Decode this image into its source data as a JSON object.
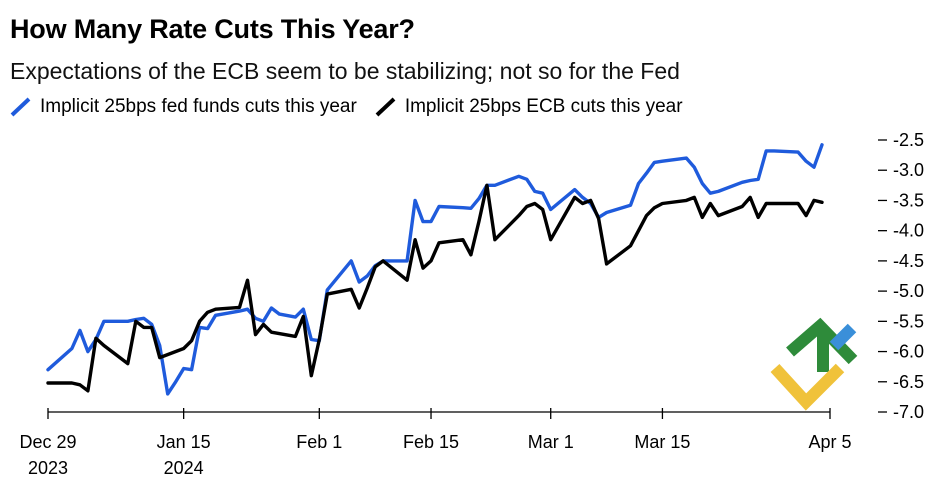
{
  "chart_data": {
    "type": "line",
    "title": "How Many Rate Cuts This Year?",
    "subtitle": "Expectations of the ECB seem to be stabilizing; not so for the Fed",
    "xlabel": "",
    "ylabel": "",
    "ylim": [
      -7.0,
      -2.5
    ],
    "yticks": [
      -2.5,
      -3.0,
      -3.5,
      -4.0,
      -4.5,
      -5.0,
      -5.5,
      -6.0,
      -6.5,
      -7.0
    ],
    "ytick_labels": [
      "-2.5",
      "-3.0",
      "-3.5",
      "-4.0",
      "-4.5",
      "-5.0",
      "-5.5",
      "-6.0",
      "-6.5",
      "-7.0"
    ],
    "x_range": [
      "2023-12-29",
      "2024-04-05"
    ],
    "x_ticks": [
      {
        "date": "2023-12-29",
        "line1": "Dec 29",
        "line2": "2023"
      },
      {
        "date": "2024-01-15",
        "line1": "Jan 15",
        "line2": "2024"
      },
      {
        "date": "2024-02-01",
        "line1": "Feb 1",
        "line2": ""
      },
      {
        "date": "2024-02-15",
        "line1": "Feb 15",
        "line2": ""
      },
      {
        "date": "2024-03-01",
        "line1": "Mar 1",
        "line2": ""
      },
      {
        "date": "2024-03-15",
        "line1": "Mar 15",
        "line2": ""
      },
      {
        "date": "2024-04-05",
        "line1": "Apr 5",
        "line2": ""
      }
    ],
    "grid": false,
    "legend_position": "top-left",
    "series": [
      {
        "name": "Implicit 25bps fed funds cuts this year",
        "color": "#1f5bdc",
        "points": [
          [
            "2023-12-29",
            -6.3
          ],
          [
            "2024-01-01",
            -5.95
          ],
          [
            "2024-01-02",
            -5.65
          ],
          [
            "2024-01-03",
            -6.0
          ],
          [
            "2024-01-04",
            -5.8
          ],
          [
            "2024-01-05",
            -5.5
          ],
          [
            "2024-01-08",
            -5.5
          ],
          [
            "2024-01-09",
            -5.47
          ],
          [
            "2024-01-10",
            -5.45
          ],
          [
            "2024-01-11",
            -5.55
          ],
          [
            "2024-01-12",
            -5.9
          ],
          [
            "2024-01-13",
            -6.7
          ],
          [
            "2024-01-14",
            -6.5
          ],
          [
            "2024-01-15",
            -6.28
          ],
          [
            "2024-01-16",
            -6.3
          ],
          [
            "2024-01-17",
            -5.6
          ],
          [
            "2024-01-18",
            -5.62
          ],
          [
            "2024-01-19",
            -5.4
          ],
          [
            "2024-01-22",
            -5.33
          ],
          [
            "2024-01-23",
            -5.3
          ],
          [
            "2024-01-24",
            -5.45
          ],
          [
            "2024-01-25",
            -5.5
          ],
          [
            "2024-01-26",
            -5.28
          ],
          [
            "2024-01-27",
            -5.38
          ],
          [
            "2024-01-29",
            -5.43
          ],
          [
            "2024-01-30",
            -5.3
          ],
          [
            "2024-01-31",
            -5.8
          ],
          [
            "2024-02-01",
            -5.82
          ],
          [
            "2024-02-02",
            -4.98
          ],
          [
            "2024-02-05",
            -4.5
          ],
          [
            "2024-02-06",
            -4.85
          ],
          [
            "2024-02-07",
            -4.75
          ],
          [
            "2024-02-08",
            -4.58
          ],
          [
            "2024-02-09",
            -4.5
          ],
          [
            "2024-02-12",
            -4.5
          ],
          [
            "2024-02-13",
            -3.5
          ],
          [
            "2024-02-14",
            -3.85
          ],
          [
            "2024-02-15",
            -3.85
          ],
          [
            "2024-02-16",
            -3.6
          ],
          [
            "2024-02-19",
            -3.62
          ],
          [
            "2024-02-20",
            -3.63
          ],
          [
            "2024-02-21",
            -3.47
          ],
          [
            "2024-02-22",
            -3.25
          ],
          [
            "2024-02-23",
            -3.25
          ],
          [
            "2024-02-26",
            -3.1
          ],
          [
            "2024-02-27",
            -3.15
          ],
          [
            "2024-02-28",
            -3.35
          ],
          [
            "2024-02-29",
            -3.38
          ],
          [
            "2024-03-01",
            -3.65
          ],
          [
            "2024-03-04",
            -3.32
          ],
          [
            "2024-03-05",
            -3.45
          ],
          [
            "2024-03-06",
            -3.55
          ],
          [
            "2024-03-07",
            -3.78
          ],
          [
            "2024-03-08",
            -3.7
          ],
          [
            "2024-03-11",
            -3.58
          ],
          [
            "2024-03-12",
            -3.22
          ],
          [
            "2024-03-13",
            -3.05
          ],
          [
            "2024-03-14",
            -2.87
          ],
          [
            "2024-03-15",
            -2.85
          ],
          [
            "2024-03-18",
            -2.8
          ],
          [
            "2024-03-19",
            -2.95
          ],
          [
            "2024-03-20",
            -3.22
          ],
          [
            "2024-03-21",
            -3.38
          ],
          [
            "2024-03-22",
            -3.35
          ],
          [
            "2024-03-25",
            -3.2
          ],
          [
            "2024-03-26",
            -3.17
          ],
          [
            "2024-03-27",
            -3.15
          ],
          [
            "2024-03-28",
            -2.68
          ],
          [
            "2024-03-29",
            -2.68
          ],
          [
            "2024-04-01",
            -2.7
          ],
          [
            "2024-04-02",
            -2.85
          ],
          [
            "2024-04-03",
            -2.95
          ],
          [
            "2024-04-04",
            -2.58
          ]
        ]
      },
      {
        "name": "Implicit 25bps ECB cuts this year",
        "color": "#000000",
        "points": [
          [
            "2023-12-29",
            -6.52
          ],
          [
            "2024-01-01",
            -6.52
          ],
          [
            "2024-01-02",
            -6.55
          ],
          [
            "2024-01-03",
            -6.65
          ],
          [
            "2024-01-04",
            -5.78
          ],
          [
            "2024-01-05",
            -5.9
          ],
          [
            "2024-01-08",
            -6.2
          ],
          [
            "2024-01-09",
            -5.5
          ],
          [
            "2024-01-10",
            -5.6
          ],
          [
            "2024-01-11",
            -5.6
          ],
          [
            "2024-01-12",
            -6.1
          ],
          [
            "2024-01-15",
            -5.95
          ],
          [
            "2024-01-16",
            -5.82
          ],
          [
            "2024-01-17",
            -5.5
          ],
          [
            "2024-01-18",
            -5.35
          ],
          [
            "2024-01-19",
            -5.3
          ],
          [
            "2024-01-22",
            -5.27
          ],
          [
            "2024-01-23",
            -4.82
          ],
          [
            "2024-01-24",
            -5.72
          ],
          [
            "2024-01-25",
            -5.55
          ],
          [
            "2024-01-26",
            -5.68
          ],
          [
            "2024-01-29",
            -5.75
          ],
          [
            "2024-01-30",
            -5.42
          ],
          [
            "2024-01-31",
            -6.4
          ],
          [
            "2024-02-01",
            -5.8
          ],
          [
            "2024-02-02",
            -5.05
          ],
          [
            "2024-02-05",
            -4.97
          ],
          [
            "2024-02-06",
            -5.28
          ],
          [
            "2024-02-07",
            -4.95
          ],
          [
            "2024-02-08",
            -4.6
          ],
          [
            "2024-02-09",
            -4.5
          ],
          [
            "2024-02-12",
            -4.82
          ],
          [
            "2024-02-13",
            -4.15
          ],
          [
            "2024-02-14",
            -4.62
          ],
          [
            "2024-02-15",
            -4.5
          ],
          [
            "2024-02-16",
            -4.2
          ],
          [
            "2024-02-19",
            -4.15
          ],
          [
            "2024-02-20",
            -4.4
          ],
          [
            "2024-02-21",
            -3.85
          ],
          [
            "2024-02-22",
            -3.25
          ],
          [
            "2024-02-23",
            -4.15
          ],
          [
            "2024-02-26",
            -3.75
          ],
          [
            "2024-02-27",
            -3.6
          ],
          [
            "2024-02-28",
            -3.55
          ],
          [
            "2024-02-29",
            -3.65
          ],
          [
            "2024-03-01",
            -4.15
          ],
          [
            "2024-03-04",
            -3.45
          ],
          [
            "2024-03-05",
            -3.55
          ],
          [
            "2024-03-06",
            -3.5
          ],
          [
            "2024-03-07",
            -3.8
          ],
          [
            "2024-03-08",
            -4.55
          ],
          [
            "2024-03-11",
            -4.25
          ],
          [
            "2024-03-12",
            -4.0
          ],
          [
            "2024-03-13",
            -3.75
          ],
          [
            "2024-03-14",
            -3.62
          ],
          [
            "2024-03-15",
            -3.55
          ],
          [
            "2024-03-18",
            -3.5
          ],
          [
            "2024-03-19",
            -3.45
          ],
          [
            "2024-03-20",
            -3.78
          ],
          [
            "2024-03-21",
            -3.55
          ],
          [
            "2024-03-22",
            -3.75
          ],
          [
            "2024-03-25",
            -3.6
          ],
          [
            "2024-03-26",
            -3.45
          ],
          [
            "2024-03-27",
            -3.78
          ],
          [
            "2024-03-28",
            -3.55
          ],
          [
            "2024-03-29",
            -3.55
          ],
          [
            "2024-04-01",
            -3.55
          ],
          [
            "2024-04-02",
            -3.75
          ],
          [
            "2024-04-03",
            -3.5
          ],
          [
            "2024-04-04",
            -3.53
          ]
        ]
      }
    ]
  },
  "logo": {
    "name": "watermark-logo",
    "colors": [
      "#2e8b3a",
      "#f0c23a",
      "#3a8fd9"
    ]
  }
}
